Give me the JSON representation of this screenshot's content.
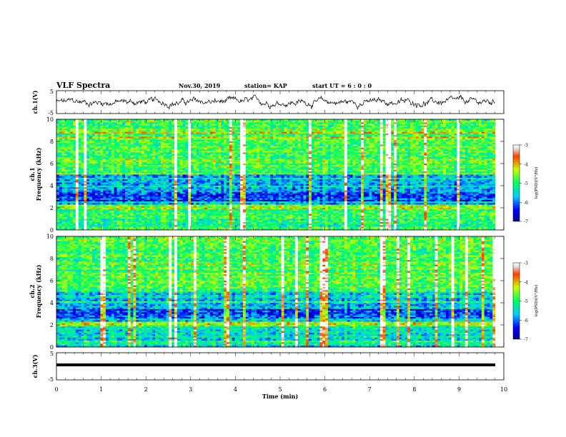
{
  "header": {
    "title": "VLF Spectra",
    "date": "Nov.30, 2019",
    "station": "station= KAP",
    "start": "start  UT =  6 : 0 : 0"
  },
  "chart_data": [
    {
      "type": "line",
      "ylabel": "ch.1(V)",
      "ylim": [
        -5,
        5
      ],
      "yticks": [
        "5",
        "-5"
      ],
      "xlim": [
        0,
        10
      ],
      "note": "noisy waveform around 0 V"
    },
    {
      "type": "heatmap",
      "ylabel": "ch.1\nFrequency (kHz)",
      "ylabel_lines": [
        "ch.1",
        "Frequency  (kHz)"
      ],
      "ylim": [
        0,
        10
      ],
      "yticks": [
        "10",
        "8",
        "6",
        "4",
        "2",
        "0"
      ],
      "xlim": [
        0,
        10
      ],
      "colorbar": {
        "label": "log(PSD)(V²/Hz)",
        "ticks": [
          "-3",
          "-4",
          "-5",
          "-6",
          "-7"
        ],
        "range": [
          -7,
          -3
        ]
      }
    },
    {
      "type": "heatmap",
      "ylabel": "ch.2\nFrequency (kHz)",
      "ylabel_lines": [
        "ch.2",
        "Frequency  (kHz)"
      ],
      "ylim": [
        0,
        10
      ],
      "yticks": [
        "10",
        "8",
        "6",
        "4",
        "2",
        "0"
      ],
      "xlim": [
        0,
        10
      ],
      "colorbar": {
        "label": "log(PSD)(V²/Hz)",
        "ticks": [
          "-3",
          "-4",
          "-5",
          "-6",
          "-7"
        ],
        "range": [
          -7,
          -3
        ]
      }
    },
    {
      "type": "line",
      "ylabel": "ch.3(V)",
      "ylim": [
        -5,
        5
      ],
      "yticks": [
        "5",
        "-5"
      ],
      "xlim": [
        0,
        10
      ],
      "xlabel": "Time  (min)",
      "xticks": [
        "0",
        "1",
        "2",
        "3",
        "4",
        "5",
        "6",
        "7",
        "8",
        "9",
        "10"
      ],
      "note": "flat thick line at about -1 V"
    }
  ]
}
